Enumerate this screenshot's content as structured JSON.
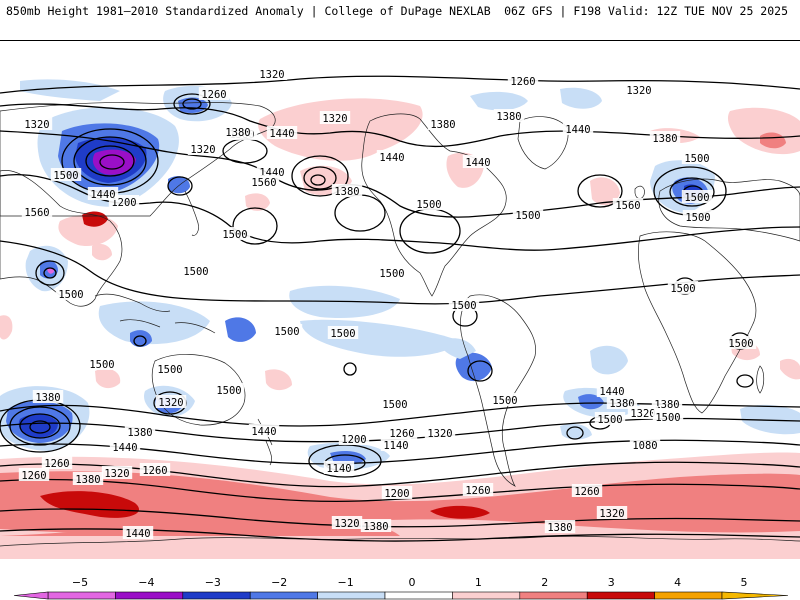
{
  "header": {
    "title": "850mb Height 1981–2010 Standardized Anomaly | College of DuPage NEXLAB",
    "run_info": "06Z GFS | F198 Valid: 12Z TUE NOV 25 2025"
  },
  "colors": {
    "anom_neg_5": "#e266e2",
    "anom_neg_4": "#9a0fc7",
    "anom_neg_3": "#1f3cc8",
    "anom_neg_2": "#4f78e6",
    "anom_neg_1": "#c8def6",
    "anom_zero": "#ffffff",
    "anom_pos_1": "#fbcfd0",
    "anom_pos_2": "#f08080",
    "anom_pos_3": "#c80a0a",
    "anom_pos_4": "#f5a200",
    "contour": "#000000",
    "coast": "#222222"
  },
  "colorbar": {
    "ticks": [
      "−5",
      "−4",
      "−3",
      "−2",
      "−1",
      "0",
      "1",
      "2",
      "3",
      "4",
      "5"
    ]
  },
  "contour_labels": [
    "1320",
    "1260",
    "1320",
    "1260",
    "1320",
    "1380",
    "1440",
    "1320",
    "1380",
    "1440",
    "1380",
    "1320",
    "1200",
    "1440",
    "1380",
    "1380",
    "1440",
    "1500",
    "1440",
    "1440",
    "1380",
    "1500",
    "1500",
    "1560",
    "1500",
    "1560",
    "1500",
    "1500",
    "1560",
    "1500",
    "1500",
    "1500",
    "1500",
    "1500",
    "1500",
    "1500",
    "1500",
    "1500",
    "1500",
    "1500",
    "1500",
    "1500",
    "1320",
    "1500",
    "1440",
    "1380",
    "1440",
    "1380",
    "1320",
    "1500",
    "1380",
    "1380",
    "1200",
    "1260",
    "1320",
    "1140",
    "1440",
    "1260",
    "1140",
    "1080",
    "1260",
    "1380",
    "1320",
    "1260",
    "1200",
    "1260",
    "1260",
    "1320",
    "1500",
    "1380",
    "1320",
    "1380",
    "1440"
  ]
}
